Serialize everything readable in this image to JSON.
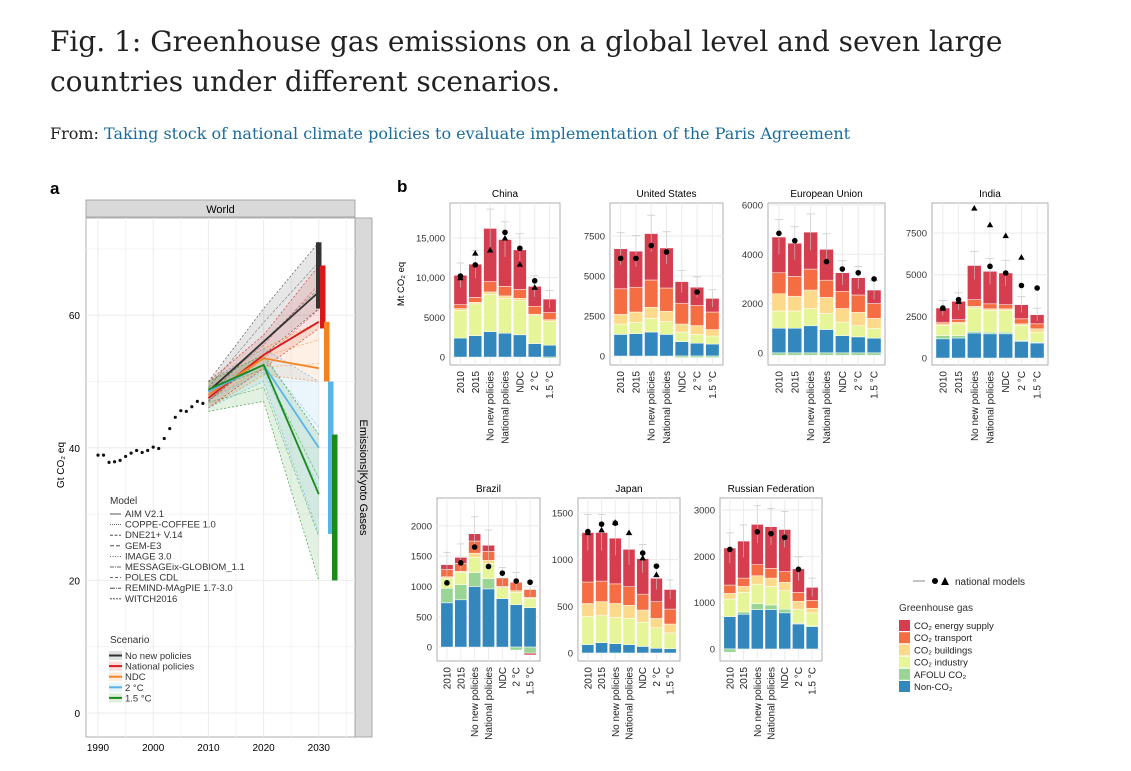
{
  "header": {
    "title": "Fig. 1: Greenhouse gas emissions on a global level and seven large countries under different scenarios.",
    "from_label": "From:",
    "link_text": "Taking stock of national climate policies to evaluate implementation of the Paris Agreement"
  },
  "chart_data": [
    {
      "type": "line",
      "panel_label": "a",
      "strip": "World",
      "side_strip": "Emissions|Kyoto Gases",
      "ylabel": "Gt CO₂ eq",
      "xticks": [
        1990,
        2000,
        2010,
        2020,
        2030
      ],
      "yticks": [
        0,
        20,
        40,
        60
      ],
      "xlim": [
        1987.8,
        2036.5
      ],
      "ylim": [
        -3,
        75
      ],
      "historical": {
        "years": [
          1990,
          1991,
          1992,
          1993,
          1994,
          1995,
          1996,
          1997,
          1998,
          1999,
          2000,
          2001,
          2002,
          2003,
          2004,
          2005,
          2006,
          2007,
          2008,
          2009
        ],
        "values": [
          38.9,
          38.9,
          37.8,
          37.9,
          38.1,
          38.7,
          39.2,
          39.6,
          39.3,
          39.6,
          40.1,
          39.9,
          41.4,
          42.9,
          44.6,
          45.6,
          45.5,
          46.2,
          47.0,
          46.7
        ]
      },
      "scenario_years": [
        2010,
        2020,
        2030
      ],
      "scenarios": [
        {
          "name": "No new policies",
          "color": "#333333",
          "median": [
            48.5,
            56,
            63.5
          ],
          "low": [
            47,
            54,
            61
          ],
          "high": [
            50,
            61,
            71
          ]
        },
        {
          "name": "National policies",
          "color": "#d7191c",
          "median": [
            47.5,
            54,
            59
          ],
          "low": [
            46,
            52,
            58
          ],
          "high": [
            50,
            57,
            67.5
          ]
        },
        {
          "name": "NDC",
          "color": "#f58220",
          "median": [
            48,
            53.5,
            52
          ],
          "low": [
            46,
            51,
            50
          ],
          "high": [
            50,
            55,
            59
          ]
        },
        {
          "name": "2 °C",
          "color": "#5ab4e5",
          "median": [
            48.5,
            52.5,
            40
          ],
          "low": [
            46,
            50,
            27
          ],
          "high": [
            50,
            55,
            50
          ]
        },
        {
          "name": "1.5 °C",
          "color": "#1a8a1a",
          "median": [
            48.8,
            52.5,
            33
          ],
          "low": [
            45.5,
            47,
            20
          ],
          "high": [
            50,
            54,
            42
          ]
        }
      ],
      "model_legend_title": "Model",
      "models": [
        "AIM V2.1",
        "COPPE-COFFEE 1.0",
        "DNE21+ V.14",
        "GEM-E3",
        "IMAGE 3.0",
        "MESSAGEix-GLOBIOM_1.1",
        "POLES CDL",
        "REMIND-MAgPIE 1.7-3.0",
        "WITCH2016"
      ],
      "scenario_legend_title": "Scenario"
    },
    {
      "type": "bar",
      "stacked": true,
      "panel_label": "b",
      "ylabel": "Mt CO₂ eq",
      "categories": [
        "2010",
        "2015",
        "No new policies",
        "National policies",
        "NDC",
        "2 °C",
        "1.5 °C"
      ],
      "sectors": [
        {
          "name": "CO₂ energy supply",
          "color": "#d53e4f"
        },
        {
          "name": "CO₂ transport",
          "color": "#f46d43"
        },
        {
          "name": "CO₂ buildings",
          "color": "#fdd98b"
        },
        {
          "name": "CO₂ industry",
          "color": "#e6f598"
        },
        {
          "name": "AFOLU CO₂",
          "color": "#99d594"
        },
        {
          "name": "Non-CO₂",
          "color": "#3288bd"
        }
      ],
      "legend_title": "Greenhouse gas",
      "marker_legend": "national models",
      "facets": [
        {
          "name": "China",
          "ylim": [
            -1000,
            19400
          ],
          "yticks": [
            0,
            5000,
            10000,
            15000
          ],
          "ytick_labels": [
            "0",
            "5000",
            "10,000",
            "15,000"
          ],
          "stacks": [
            [
              3700,
              500,
              200,
              3500,
              0,
              2400
            ],
            [
              4200,
              600,
              200,
              4000,
              0,
              2700
            ],
            [
              6700,
              1300,
              300,
              4700,
              0,
              3200
            ],
            [
              5900,
              1200,
              300,
              4400,
              0,
              3000
            ],
            [
              5000,
              1100,
              300,
              4300,
              0,
              2800
            ],
            [
              2500,
              1000,
              200,
              3500,
              0,
              1700
            ],
            [
              1700,
              900,
              200,
              3000,
              -150,
              1500
            ]
          ],
          "dots": [
            10200,
            11600,
            null,
            15700,
            13700,
            9600,
            null
          ],
          "triangles": [
            10000,
            13100,
            13500,
            15000,
            11700,
            8800,
            null
          ]
        },
        {
          "name": "United States",
          "ylim": [
            -560,
            9560
          ],
          "yticks": [
            0,
            2500,
            5000,
            7500
          ],
          "ytick_labels": [
            "0",
            "2500",
            "5000",
            "7500"
          ],
          "stacks": [
            [
              2500,
              1600,
              600,
              650,
              0,
              1350
            ],
            [
              2250,
              1550,
              650,
              700,
              0,
              1400
            ],
            [
              2900,
              1700,
              700,
              850,
              0,
              1500
            ],
            [
              2500,
              1450,
              650,
              800,
              0,
              1350
            ],
            [
              1350,
              1300,
              500,
              600,
              -100,
              900
            ],
            [
              1150,
              1250,
              550,
              550,
              -100,
              800
            ],
            [
              850,
              1100,
              400,
              500,
              -100,
              750
            ]
          ],
          "dots": [
            6100,
            6100,
            6900,
            6500,
            null,
            4000,
            null
          ],
          "triangles": [
            null,
            null,
            null,
            null,
            null,
            null,
            null
          ]
        },
        {
          "name": "European Union",
          "ylim": [
            -490,
            6080
          ],
          "yticks": [
            0,
            2000,
            4000,
            6000
          ],
          "ytick_labels": [
            "0",
            "2000",
            "4000",
            "6000"
          ],
          "stacks": [
            [
              1450,
              850,
              700,
              700,
              -100,
              1000
            ],
            [
              1350,
              800,
              600,
              700,
              -100,
              1000
            ],
            [
              1500,
              850,
              750,
              700,
              -100,
              1100
            ],
            [
              1250,
              700,
              650,
              650,
              -100,
              950
            ],
            [
              750,
              700,
              550,
              550,
              -100,
              700
            ],
            [
              700,
              700,
              550,
              450,
              -100,
              650
            ],
            [
              550,
              600,
              400,
              400,
              -100,
              600
            ]
          ],
          "dots": [
            4850,
            4550,
            null,
            3700,
            3400,
            3250,
            3000
          ],
          "triangles": [
            null,
            null,
            null,
            null,
            null,
            null,
            null
          ]
        },
        {
          "name": "India",
          "ylim": [
            -420,
            9300
          ],
          "yticks": [
            0,
            2500,
            5000,
            7500
          ],
          "ytick_labels": [
            "0",
            "2500",
            "5000",
            "7500"
          ],
          "stacks": [
            [
              850,
              100,
              100,
              600,
              200,
              1150
            ],
            [
              1100,
              150,
              100,
              700,
              150,
              1200
            ],
            [
              2050,
              400,
              100,
              1400,
              100,
              1500
            ],
            [
              1950,
              300,
              100,
              1300,
              100,
              1450
            ],
            [
              1900,
              250,
              100,
              1300,
              100,
              1450
            ],
            [
              850,
              300,
              100,
              900,
              50,
              1000
            ],
            [
              550,
              300,
              200,
              600,
              50,
              900
            ]
          ],
          "dots": [
            3000,
            3500,
            null,
            5500,
            5100,
            4350,
            4200
          ],
          "triangles": [
            3000,
            3400,
            9000,
            8000,
            7350,
            6050,
            null
          ]
        },
        {
          "name": "Brazil",
          "ylim": [
            -230,
            2460
          ],
          "yticks": [
            0,
            500,
            1000,
            1500,
            2000
          ],
          "ytick_labels": [
            "0",
            "500",
            "1000",
            "1500",
            "2000"
          ],
          "stacks": [
            [
              80,
              120,
              20,
              170,
              240,
              730
            ],
            [
              100,
              130,
              20,
              200,
              250,
              780
            ],
            [
              120,
              200,
              70,
              250,
              230,
              1000
            ],
            [
              100,
              150,
              50,
              250,
              170,
              960
            ],
            [
              0,
              140,
              20,
              180,
              0,
              800
            ],
            [
              0,
              140,
              30,
              200,
              -50,
              700
            ],
            [
              -30,
              130,
              20,
              150,
              -100,
              650
            ]
          ],
          "dots": [
            1060,
            1390,
            1650,
            1330,
            1220,
            1090,
            1070
          ],
          "triangles": [
            null,
            null,
            null,
            null,
            null,
            null,
            null
          ]
        },
        {
          "name": "Japan",
          "ylim": [
            -86,
            1660
          ],
          "yticks": [
            0,
            500,
            1000,
            1500
          ],
          "ytick_labels": [
            "0",
            "500",
            "1000",
            "1500"
          ],
          "stacks": [
            [
              530,
              230,
              140,
              300,
              0,
              90
            ],
            [
              520,
              220,
              150,
              290,
              0,
              110
            ],
            [
              490,
              210,
              150,
              280,
              0,
              100
            ],
            [
              400,
              200,
              140,
              280,
              0,
              90
            ],
            [
              380,
              170,
              130,
              260,
              0,
              70
            ],
            [
              250,
              180,
              100,
              220,
              0,
              50
            ],
            [
              210,
              160,
              95,
              170,
              0,
              45
            ]
          ],
          "dots": [
            1300,
            1380,
            1390,
            null,
            1070,
            930,
            null
          ],
          "triangles": [
            1290,
            1320,
            1400,
            1290,
            1020,
            840,
            null
          ]
        },
        {
          "name": "Russian Federation",
          "ylim": [
            -260,
            3260
          ],
          "yticks": [
            0,
            1000,
            2000,
            3000
          ],
          "ytick_labels": [
            "0",
            "1000",
            "2000",
            "3000"
          ],
          "stacks": [
            [
              800,
              180,
              120,
              380,
              -70,
              700
            ],
            [
              800,
              180,
              130,
              420,
              50,
              750
            ],
            [
              870,
              240,
              180,
              420,
              130,
              850
            ],
            [
              900,
              210,
              180,
              400,
              100,
              850
            ],
            [
              910,
              230,
              180,
              400,
              80,
              780
            ],
            [
              510,
              190,
              170,
              300,
              20,
              540
            ],
            [
              280,
              170,
              100,
              280,
              20,
              480
            ]
          ],
          "dots": [
            2150,
            null,
            2530,
            2490,
            2410,
            1720,
            null
          ],
          "triangles": [
            null,
            null,
            null,
            null,
            null,
            null,
            null
          ]
        }
      ]
    }
  ]
}
